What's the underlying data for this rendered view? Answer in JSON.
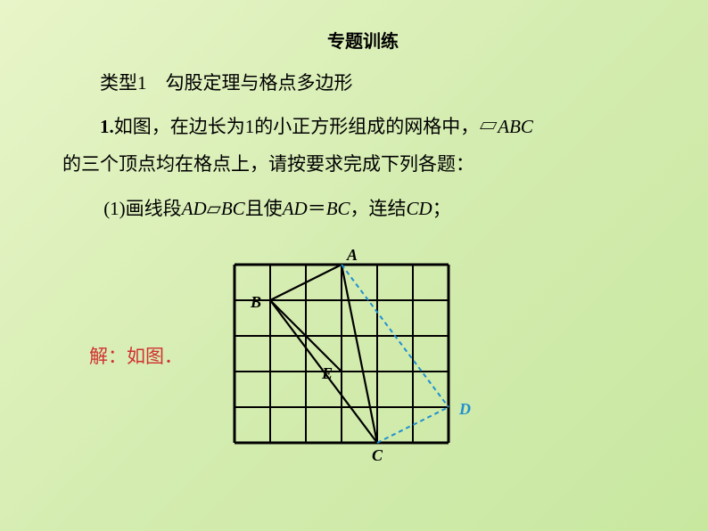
{
  "title": "专题训练",
  "subtitle_prefix": "类型1",
  "subtitle_text": "勾股定理与格点多边形",
  "problem_num": "1.",
  "problem_text1": "如图，在边长为1的小正方形组成的网格中，▱",
  "problem_tri": "ABC",
  "problem_text2": "的三个顶点均在格点上，请按要求完成下列各题：",
  "subproblem_prefix": "(1)画线段",
  "seg_ad": "AD",
  "parallel_sym": "▱",
  "seg_bc": "BC",
  "and_text": "且使",
  "eq_left": "AD",
  "eq_sym": "＝",
  "eq_right": "BC",
  "conn_text": "，连结",
  "seg_cd": "CD",
  "semi": "；",
  "solution": "解：如图．",
  "figure": {
    "grid": {
      "cols": 6,
      "rows": 5,
      "cell": 40,
      "line_color": "#000000",
      "line_width": 2,
      "border_width": 3
    },
    "points": {
      "A": {
        "gx": 3,
        "gy": 0,
        "label_dx": 6,
        "label_dy": -5
      },
      "B": {
        "gx": 1,
        "gy": 1,
        "label_dx": -22,
        "label_dy": 8
      },
      "C": {
        "gx": 4,
        "gy": 5,
        "label_dx": -6,
        "label_dy": 20
      },
      "D": {
        "gx": 6,
        "gy": 4,
        "label_dx": 12,
        "label_dy": 8,
        "color": "#2090d0"
      },
      "E": {
        "gx": 3,
        "gy": 3,
        "label_dx": -22,
        "label_dy": 8
      }
    },
    "solid_edges": [
      [
        "A",
        "B"
      ],
      [
        "B",
        "C"
      ],
      [
        "A",
        "C"
      ],
      [
        "B",
        "E"
      ]
    ],
    "dashed_edges": [
      [
        "A",
        "D"
      ],
      [
        "C",
        "D"
      ]
    ],
    "solid_color": "#000000",
    "solid_width": 2.2,
    "dashed_color": "#2090d0",
    "dashed_width": 2,
    "dash_pattern": "5,4",
    "label_font": "italic bold 18px 'Times New Roman', serif"
  }
}
